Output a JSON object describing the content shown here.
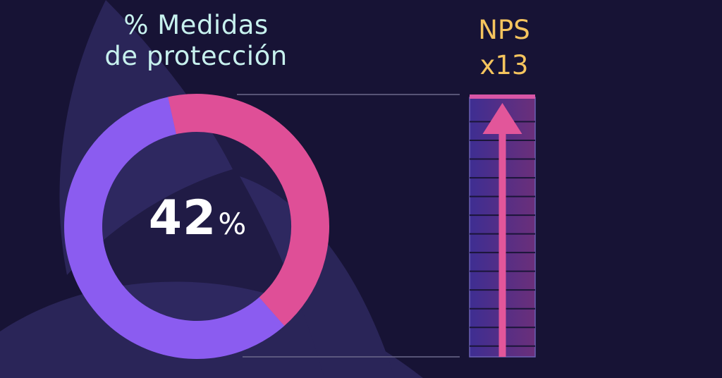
{
  "colors": {
    "background": "#171335",
    "background_shape": "#2a2558",
    "donut_primary": "#8b5cf0",
    "donut_secondary": "#df4f97",
    "title_text": "#c7f1ee",
    "nps_text": "#f5c45e",
    "arrow": "#e2569a",
    "guide_line": "#6d6a8c"
  },
  "chart_data": [
    {
      "type": "pie",
      "title_lines": [
        "% Medidas",
        "de protección"
      ],
      "value_label": "42",
      "unit_label": "%",
      "slices": [
        {
          "label": "",
          "value": 42,
          "color": "#df4f97"
        },
        {
          "label": "",
          "value": 58,
          "color": "#8b5cf0"
        }
      ]
    },
    {
      "type": "bar",
      "title_lines": [
        "NPS",
        "x13"
      ],
      "multiplier": 13,
      "indicator": "arrow-up-icon"
    }
  ]
}
